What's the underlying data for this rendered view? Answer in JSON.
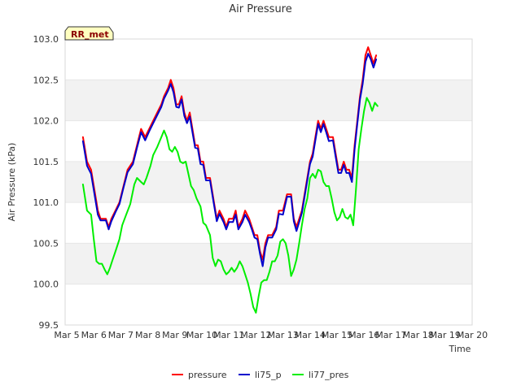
{
  "chart_data": {
    "type": "line",
    "title": "Air Pressure",
    "xlabel": "Time",
    "ylabel": "Air Pressure (kPa)",
    "badge": "RR_met",
    "ylim": [
      99.5,
      103.0
    ],
    "xlim": [
      0,
      15
    ],
    "y_ticks": [
      {
        "v": 99.5,
        "label": "99.5"
      },
      {
        "v": 100.0,
        "label": "100.0"
      },
      {
        "v": 100.5,
        "label": "100.5"
      },
      {
        "v": 101.0,
        "label": "101.0"
      },
      {
        "v": 101.5,
        "label": "101.5"
      },
      {
        "v": 102.0,
        "label": "102.0"
      },
      {
        "v": 102.5,
        "label": "102.5"
      },
      {
        "v": 103.0,
        "label": "103.0"
      }
    ],
    "x_ticks": [
      {
        "v": 0,
        "label": "Mar 5"
      },
      {
        "v": 1,
        "label": "Mar 6"
      },
      {
        "v": 2,
        "label": "Mar 7"
      },
      {
        "v": 3,
        "label": "Mar 8"
      },
      {
        "v": 4,
        "label": "Mar 9"
      },
      {
        "v": 5,
        "label": "Mar 10"
      },
      {
        "v": 6,
        "label": "Mar 11"
      },
      {
        "v": 7,
        "label": "Mar 12"
      },
      {
        "v": 8,
        "label": "Mar 13"
      },
      {
        "v": 9,
        "label": "Mar 14"
      },
      {
        "v": 10,
        "label": "Mar 15"
      },
      {
        "v": 11,
        "label": "Mar 16"
      },
      {
        "v": 12,
        "label": "Mar 17"
      },
      {
        "v": 13,
        "label": "Mar 18"
      },
      {
        "v": 14,
        "label": "Mar 19"
      },
      {
        "v": 15,
        "label": "Mar 20"
      }
    ],
    "series": [
      {
        "name": "pressure",
        "color": "#ff0000",
        "points": [
          [
            0.6,
            101.8
          ],
          [
            0.75,
            101.5
          ],
          [
            0.9,
            101.4
          ],
          [
            1.05,
            101.1
          ],
          [
            1.15,
            100.9
          ],
          [
            1.25,
            100.8
          ],
          [
            1.45,
            100.8
          ],
          [
            1.55,
            100.7
          ],
          [
            1.65,
            100.8
          ],
          [
            1.8,
            100.9
          ],
          [
            1.95,
            101.0
          ],
          [
            2.1,
            101.2
          ],
          [
            2.25,
            101.4
          ],
          [
            2.45,
            101.5
          ],
          [
            2.6,
            101.7
          ],
          [
            2.75,
            101.9
          ],
          [
            2.9,
            101.8
          ],
          [
            3.05,
            101.9
          ],
          [
            3.2,
            102.0
          ],
          [
            3.35,
            102.1
          ],
          [
            3.5,
            102.2
          ],
          [
            3.6,
            102.3
          ],
          [
            3.75,
            102.4
          ],
          [
            3.85,
            102.5
          ],
          [
            3.95,
            102.4
          ],
          [
            4.05,
            102.2
          ],
          [
            4.15,
            102.2
          ],
          [
            4.25,
            102.3
          ],
          [
            4.35,
            102.1
          ],
          [
            4.45,
            102.0
          ],
          [
            4.55,
            102.1
          ],
          [
            4.65,
            101.9
          ],
          [
            4.75,
            101.7
          ],
          [
            4.85,
            101.7
          ],
          [
            4.95,
            101.5
          ],
          [
            5.05,
            101.5
          ],
          [
            5.15,
            101.3
          ],
          [
            5.3,
            101.3
          ],
          [
            5.45,
            101.0
          ],
          [
            5.55,
            100.8
          ],
          [
            5.65,
            100.9
          ],
          [
            5.8,
            100.8
          ],
          [
            5.9,
            100.7
          ],
          [
            6.0,
            100.8
          ],
          [
            6.15,
            100.8
          ],
          [
            6.25,
            100.9
          ],
          [
            6.35,
            100.7
          ],
          [
            6.5,
            100.8
          ],
          [
            6.6,
            100.9
          ],
          [
            6.75,
            100.8
          ],
          [
            6.85,
            100.7
          ],
          [
            6.95,
            100.6
          ],
          [
            7.05,
            100.6
          ],
          [
            7.15,
            100.4
          ],
          [
            7.25,
            100.3
          ],
          [
            7.35,
            100.5
          ],
          [
            7.45,
            100.6
          ],
          [
            7.6,
            100.6
          ],
          [
            7.75,
            100.7
          ],
          [
            7.85,
            100.9
          ],
          [
            8.0,
            100.9
          ],
          [
            8.15,
            101.1
          ],
          [
            8.3,
            101.1
          ],
          [
            8.4,
            100.8
          ],
          [
            8.5,
            100.7
          ],
          [
            8.6,
            100.8
          ],
          [
            8.7,
            100.9
          ],
          [
            8.85,
            101.2
          ],
          [
            9.0,
            101.5
          ],
          [
            9.1,
            101.6
          ],
          [
            9.2,
            101.8
          ],
          [
            9.3,
            102.0
          ],
          [
            9.4,
            101.9
          ],
          [
            9.5,
            102.0
          ],
          [
            9.6,
            101.9
          ],
          [
            9.7,
            101.8
          ],
          [
            9.85,
            101.8
          ],
          [
            9.95,
            101.6
          ],
          [
            10.05,
            101.4
          ],
          [
            10.15,
            101.4
          ],
          [
            10.25,
            101.5
          ],
          [
            10.35,
            101.4
          ],
          [
            10.45,
            101.4
          ],
          [
            10.55,
            101.3
          ],
          [
            10.65,
            101.7
          ],
          [
            10.75,
            102.0
          ],
          [
            10.85,
            102.3
          ],
          [
            10.95,
            102.5
          ],
          [
            11.05,
            102.8
          ],
          [
            11.15,
            102.9
          ],
          [
            11.25,
            102.8
          ],
          [
            11.35,
            102.7
          ],
          [
            11.45,
            102.8
          ]
        ]
      },
      {
        "name": "li75_p",
        "color": "#0000cc",
        "points": [
          [
            0.6,
            101.75
          ],
          [
            0.75,
            101.45
          ],
          [
            0.9,
            101.35
          ],
          [
            1.05,
            101.05
          ],
          [
            1.15,
            100.85
          ],
          [
            1.25,
            100.78
          ],
          [
            1.45,
            100.78
          ],
          [
            1.55,
            100.67
          ],
          [
            1.65,
            100.77
          ],
          [
            1.8,
            100.88
          ],
          [
            1.95,
            100.98
          ],
          [
            2.1,
            101.18
          ],
          [
            2.25,
            101.37
          ],
          [
            2.45,
            101.47
          ],
          [
            2.6,
            101.67
          ],
          [
            2.75,
            101.86
          ],
          [
            2.9,
            101.76
          ],
          [
            3.05,
            101.87
          ],
          [
            3.2,
            101.97
          ],
          [
            3.35,
            102.07
          ],
          [
            3.5,
            102.17
          ],
          [
            3.6,
            102.27
          ],
          [
            3.75,
            102.37
          ],
          [
            3.85,
            102.45
          ],
          [
            3.95,
            102.35
          ],
          [
            4.05,
            102.17
          ],
          [
            4.15,
            102.16
          ],
          [
            4.25,
            102.26
          ],
          [
            4.35,
            102.06
          ],
          [
            4.45,
            101.97
          ],
          [
            4.55,
            102.05
          ],
          [
            4.65,
            101.86
          ],
          [
            4.75,
            101.67
          ],
          [
            4.85,
            101.66
          ],
          [
            4.95,
            101.47
          ],
          [
            5.05,
            101.46
          ],
          [
            5.15,
            101.27
          ],
          [
            5.3,
            101.27
          ],
          [
            5.45,
            100.97
          ],
          [
            5.55,
            100.77
          ],
          [
            5.65,
            100.86
          ],
          [
            5.8,
            100.76
          ],
          [
            5.9,
            100.67
          ],
          [
            6.0,
            100.76
          ],
          [
            6.15,
            100.76
          ],
          [
            6.25,
            100.85
          ],
          [
            6.35,
            100.67
          ],
          [
            6.5,
            100.76
          ],
          [
            6.6,
            100.85
          ],
          [
            6.75,
            100.76
          ],
          [
            6.85,
            100.67
          ],
          [
            6.95,
            100.57
          ],
          [
            7.05,
            100.55
          ],
          [
            7.15,
            100.37
          ],
          [
            7.25,
            100.22
          ],
          [
            7.35,
            100.45
          ],
          [
            7.45,
            100.57
          ],
          [
            7.6,
            100.57
          ],
          [
            7.75,
            100.67
          ],
          [
            7.85,
            100.86
          ],
          [
            8.0,
            100.85
          ],
          [
            8.15,
            101.07
          ],
          [
            8.3,
            101.07
          ],
          [
            8.4,
            100.77
          ],
          [
            8.5,
            100.65
          ],
          [
            8.6,
            100.76
          ],
          [
            8.7,
            100.87
          ],
          [
            8.85,
            101.17
          ],
          [
            9.0,
            101.47
          ],
          [
            9.1,
            101.56
          ],
          [
            9.2,
            101.76
          ],
          [
            9.3,
            101.96
          ],
          [
            9.4,
            101.86
          ],
          [
            9.5,
            101.96
          ],
          [
            9.6,
            101.86
          ],
          [
            9.7,
            101.75
          ],
          [
            9.85,
            101.76
          ],
          [
            9.95,
            101.56
          ],
          [
            10.05,
            101.36
          ],
          [
            10.15,
            101.36
          ],
          [
            10.25,
            101.46
          ],
          [
            10.35,
            101.36
          ],
          [
            10.45,
            101.36
          ],
          [
            10.55,
            101.25
          ],
          [
            10.65,
            101.65
          ],
          [
            10.75,
            101.96
          ],
          [
            10.85,
            102.26
          ],
          [
            10.95,
            102.45
          ],
          [
            11.05,
            102.72
          ],
          [
            11.15,
            102.82
          ],
          [
            11.25,
            102.75
          ],
          [
            11.35,
            102.65
          ],
          [
            11.45,
            102.75
          ]
        ]
      },
      {
        "name": "li77_pres",
        "color": "#00ee00",
        "points": [
          [
            0.6,
            101.22
          ],
          [
            0.75,
            100.9
          ],
          [
            0.9,
            100.85
          ],
          [
            1.0,
            100.55
          ],
          [
            1.1,
            100.28
          ],
          [
            1.2,
            100.25
          ],
          [
            1.3,
            100.25
          ],
          [
            1.4,
            100.18
          ],
          [
            1.5,
            100.12
          ],
          [
            1.6,
            100.2
          ],
          [
            1.7,
            100.3
          ],
          [
            1.8,
            100.4
          ],
          [
            1.95,
            100.55
          ],
          [
            2.05,
            100.72
          ],
          [
            2.2,
            100.85
          ],
          [
            2.35,
            100.98
          ],
          [
            2.5,
            101.22
          ],
          [
            2.6,
            101.3
          ],
          [
            2.75,
            101.25
          ],
          [
            2.85,
            101.22
          ],
          [
            2.95,
            101.3
          ],
          [
            3.1,
            101.45
          ],
          [
            3.2,
            101.58
          ],
          [
            3.35,
            101.68
          ],
          [
            3.5,
            101.8
          ],
          [
            3.6,
            101.88
          ],
          [
            3.7,
            101.8
          ],
          [
            3.8,
            101.65
          ],
          [
            3.9,
            101.62
          ],
          [
            4.0,
            101.68
          ],
          [
            4.1,
            101.62
          ],
          [
            4.2,
            101.5
          ],
          [
            4.3,
            101.48
          ],
          [
            4.4,
            101.5
          ],
          [
            4.5,
            101.35
          ],
          [
            4.6,
            101.2
          ],
          [
            4.7,
            101.15
          ],
          [
            4.8,
            101.05
          ],
          [
            4.95,
            100.95
          ],
          [
            5.05,
            100.75
          ],
          [
            5.15,
            100.72
          ],
          [
            5.3,
            100.6
          ],
          [
            5.4,
            100.32
          ],
          [
            5.5,
            100.22
          ],
          [
            5.6,
            100.3
          ],
          [
            5.7,
            100.28
          ],
          [
            5.8,
            100.18
          ],
          [
            5.9,
            100.12
          ],
          [
            6.0,
            100.15
          ],
          [
            6.1,
            100.2
          ],
          [
            6.2,
            100.15
          ],
          [
            6.3,
            100.2
          ],
          [
            6.4,
            100.28
          ],
          [
            6.5,
            100.22
          ],
          [
            6.6,
            100.12
          ],
          [
            6.7,
            100.02
          ],
          [
            6.8,
            99.88
          ],
          [
            6.9,
            99.72
          ],
          [
            7.0,
            99.65
          ],
          [
            7.1,
            99.85
          ],
          [
            7.2,
            100.02
          ],
          [
            7.3,
            100.05
          ],
          [
            7.4,
            100.05
          ],
          [
            7.5,
            100.15
          ],
          [
            7.6,
            100.28
          ],
          [
            7.7,
            100.28
          ],
          [
            7.8,
            100.35
          ],
          [
            7.9,
            100.52
          ],
          [
            8.0,
            100.55
          ],
          [
            8.1,
            100.5
          ],
          [
            8.2,
            100.35
          ],
          [
            8.3,
            100.1
          ],
          [
            8.4,
            100.18
          ],
          [
            8.5,
            100.3
          ],
          [
            8.6,
            100.5
          ],
          [
            8.7,
            100.72
          ],
          [
            8.8,
            100.92
          ],
          [
            8.9,
            101.05
          ],
          [
            9.0,
            101.3
          ],
          [
            9.1,
            101.35
          ],
          [
            9.2,
            101.3
          ],
          [
            9.3,
            101.4
          ],
          [
            9.4,
            101.38
          ],
          [
            9.5,
            101.25
          ],
          [
            9.6,
            101.2
          ],
          [
            9.7,
            101.2
          ],
          [
            9.8,
            101.05
          ],
          [
            9.9,
            100.88
          ],
          [
            10.0,
            100.78
          ],
          [
            10.1,
            100.82
          ],
          [
            10.2,
            100.92
          ],
          [
            10.3,
            100.82
          ],
          [
            10.4,
            100.8
          ],
          [
            10.5,
            100.85
          ],
          [
            10.6,
            100.72
          ],
          [
            10.7,
            101.15
          ],
          [
            10.8,
            101.65
          ],
          [
            10.9,
            101.9
          ],
          [
            11.0,
            102.12
          ],
          [
            11.1,
            102.28
          ],
          [
            11.2,
            102.22
          ],
          [
            11.3,
            102.12
          ],
          [
            11.4,
            102.22
          ],
          [
            11.5,
            102.18
          ]
        ]
      }
    ],
    "legend": [
      "pressure",
      "li75_p",
      "li77_pres"
    ]
  }
}
